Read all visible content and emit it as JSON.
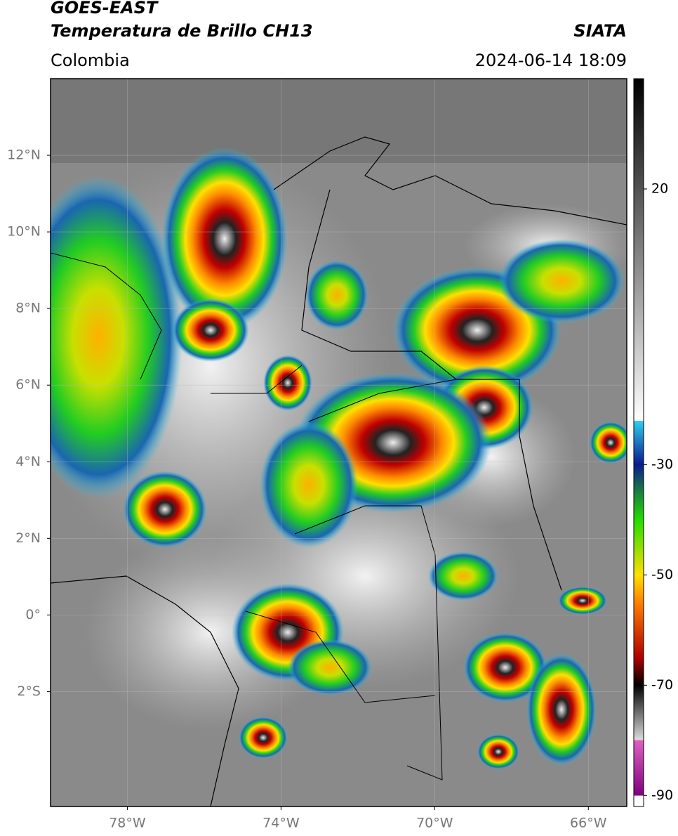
{
  "header": {
    "title": "GOES-EAST",
    "subtitle": "Temperatura de Brillo CH13",
    "source": "SIATA",
    "region": "Colombia",
    "datetime": "2024-06-14 18:09"
  },
  "map": {
    "xlim": [
      -80,
      -65
    ],
    "ylim": [
      -5,
      14
    ],
    "xticks": [
      {
        "value": -78,
        "label": "78°W"
      },
      {
        "value": -74,
        "label": "74°W"
      },
      {
        "value": -70,
        "label": "70°W"
      },
      {
        "value": -66,
        "label": "66°W"
      }
    ],
    "yticks": [
      {
        "value": 12,
        "label": "12°N"
      },
      {
        "value": 10,
        "label": "10°N"
      },
      {
        "value": 8,
        "label": "8°N"
      },
      {
        "value": 6,
        "label": "6°N"
      },
      {
        "value": 4,
        "label": "4°N"
      },
      {
        "value": 2,
        "label": "2°N"
      },
      {
        "value": 0,
        "label": "0°"
      },
      {
        "value": -2,
        "label": "2°S"
      }
    ]
  },
  "colorbar": {
    "clim": [
      -92,
      40
    ],
    "ticks": [
      20,
      -30,
      -50,
      -70,
      -90
    ]
  }
}
